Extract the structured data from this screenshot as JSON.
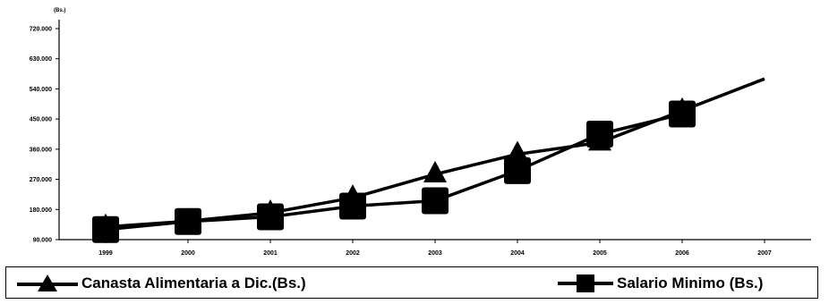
{
  "chart_data": {
    "type": "line",
    "unit_label": "(Bs.)",
    "title": "",
    "xlabel": "",
    "ylabel": "",
    "x": [
      "1999",
      "2000",
      "2001",
      "2002",
      "2003",
      "2004",
      "2005",
      "2006",
      "2007"
    ],
    "y_ticks": [
      90000,
      180000,
      270000,
      360000,
      450000,
      540000,
      630000,
      720000
    ],
    "y_tick_labels": [
      "90.000",
      "180.000",
      "270.000",
      "360.000",
      "450.000",
      "540.000",
      "630.000",
      "720.000"
    ],
    "ylim": [
      90000,
      720000
    ],
    "grid": false,
    "legend_position": "bottom",
    "series": [
      {
        "name": "Canasta Alimentaria a Dic.(Bs.)",
        "marker": "triangle",
        "color": "#000000",
        "values": [
          128000,
          145000,
          170000,
          215000,
          285000,
          345000,
          380000,
          475000,
          570000
        ]
      },
      {
        "name": "Salario Minimo (Bs.)",
        "marker": "square",
        "color": "#000000",
        "values": [
          120000,
          144000,
          158000,
          190000,
          206000,
          296000,
          405000,
          465000,
          null
        ]
      }
    ]
  }
}
